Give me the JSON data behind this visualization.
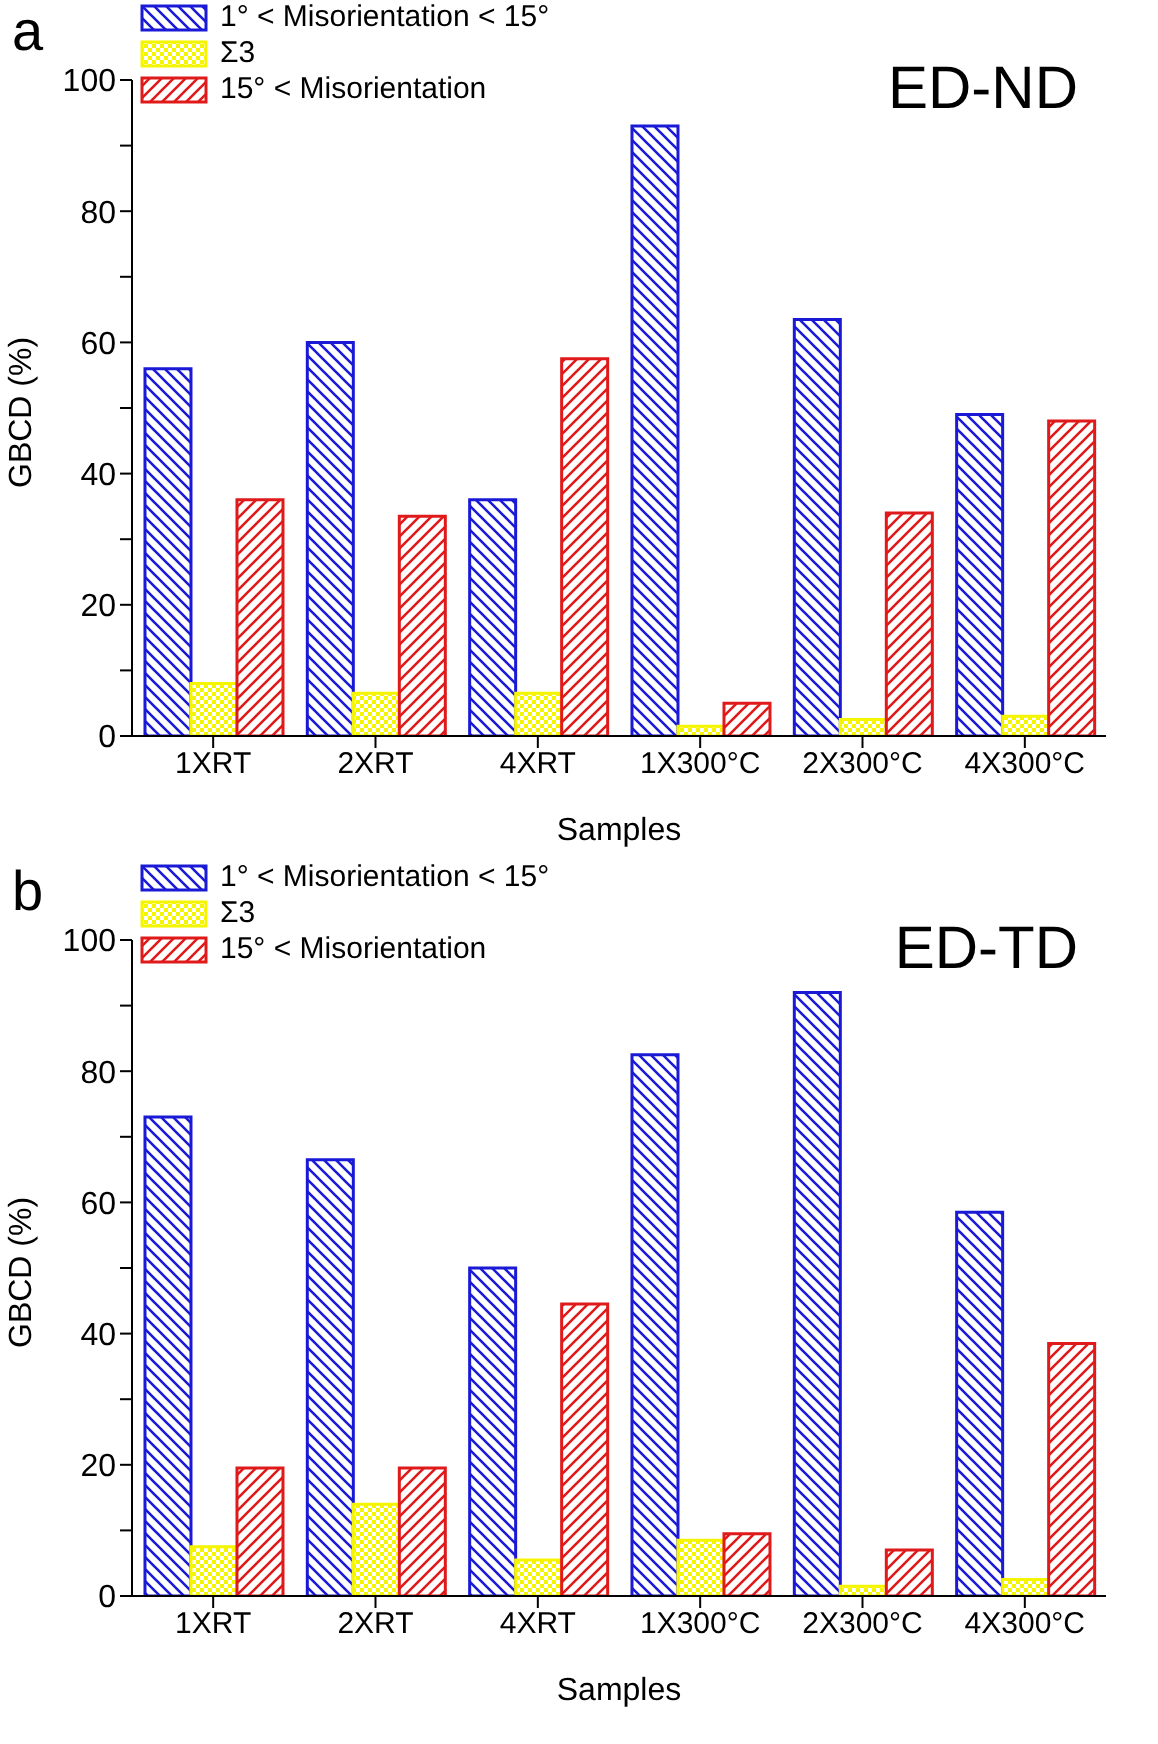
{
  "chart_data": [
    {
      "type": "bar",
      "title": "ED-ND",
      "xlabel": "Samples",
      "ylabel": "GBCD (%)",
      "annotations": [
        "a"
      ],
      "categories": [
        "1XRT",
        "2XRT",
        "4XRT",
        "1X300°C",
        "2X300°C",
        "4X300°C"
      ],
      "series": [
        {
          "name": "1° < Misorientation < 15°",
          "color": "#1a1ad6",
          "values": [
            56,
            60,
            36,
            93,
            63.5,
            49
          ]
        },
        {
          "name": "Σ3",
          "color": "#f5f500",
          "values": [
            8,
            6.5,
            6.5,
            1.5,
            2.5,
            3
          ]
        },
        {
          "name": "15° < Misorientation",
          "color": "#e01a1a",
          "values": [
            36,
            33.5,
            57.5,
            5,
            34,
            48
          ]
        }
      ],
      "ylim": [
        0,
        100
      ],
      "yticks": [
        0,
        {
          "value": 10,
          "label": null
        },
        20,
        {
          "value": 30,
          "label": null
        },
        40,
        {
          "value": 50,
          "label": null
        },
        60,
        {
          "value": 70,
          "label": null
        },
        80,
        {
          "value": 90,
          "label": null
        },
        100
      ],
      "legend": "top left"
    },
    {
      "type": "bar",
      "title": "ED-TD",
      "xlabel": "Samples",
      "ylabel": "GBCD (%)",
      "annotations": [
        "b"
      ],
      "categories": [
        "1XRT",
        "2XRT",
        "4XRT",
        "1X300°C",
        "2X300°C",
        "4X300°C"
      ],
      "series": [
        {
          "name": "1° < Misorientation < 15°",
          "color": "#1a1ad6",
          "values": [
            73,
            66.5,
            50,
            82.5,
            92,
            58.5
          ]
        },
        {
          "name": "Σ3",
          "color": "#f5f500",
          "values": [
            7.5,
            14,
            5.5,
            8.5,
            1.5,
            2.5
          ]
        },
        {
          "name": "15° < Misorientation",
          "color": "#e01a1a",
          "values": [
            19.5,
            19.5,
            44.5,
            9.5,
            7,
            38.5
          ]
        }
      ],
      "ylim": [
        0,
        100
      ],
      "yticks": [
        0,
        {
          "value": 10,
          "label": null
        },
        20,
        {
          "value": 30,
          "label": null
        },
        40,
        {
          "value": 50,
          "label": null
        },
        60,
        {
          "value": 70,
          "label": null
        },
        80,
        {
          "value": 90,
          "label": null
        },
        100
      ],
      "legend": "top left"
    }
  ]
}
